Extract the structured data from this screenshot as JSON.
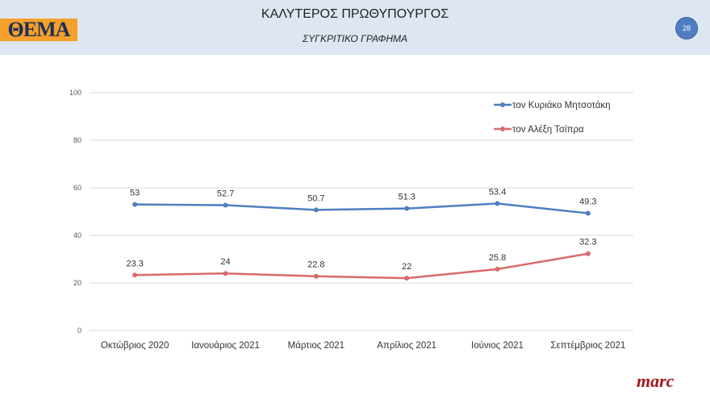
{
  "header": {
    "title": "ΚΑΛΥΤΕΡΟΣ ΠΡΩΘΥΠΟΥΡΓΟΣ",
    "subtitle": "ΣΥΓΚΡΙΤΙΚΟ ΓΡΑΦΗΜΑ",
    "page_number": "28",
    "logo_text": "ΘΕΜΑ"
  },
  "footer": {
    "brand": "marc"
  },
  "chart_data": {
    "type": "line",
    "categories": [
      "Οκτώβριος 2020",
      "Ιανουάριος 2021",
      "Μάρτιος 2021",
      "Απρίλιος 2021",
      "Ιούνιος 2021",
      "Σεπτέμβριος 2021"
    ],
    "series": [
      {
        "name": "τον Κυριάκο Μητσοτάκη",
        "values": [
          53,
          52.7,
          50.7,
          51.3,
          53.4,
          49.3
        ],
        "color": "#4f7ec0"
      },
      {
        "name": "τον Αλέξη Τσίπρα",
        "values": [
          23.3,
          24,
          22.8,
          22,
          25.8,
          32.3
        ],
        "color": "#d86b6b"
      }
    ],
    "ylim": [
      0,
      100
    ],
    "yticks": [
      0,
      20,
      40,
      60,
      80,
      100
    ],
    "grid": true,
    "legend": "top-right"
  }
}
